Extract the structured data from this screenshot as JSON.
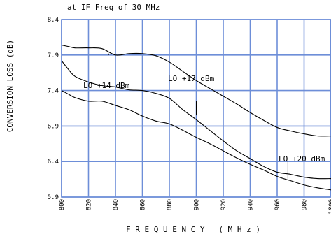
{
  "chart_data": {
    "type": "line",
    "title": "at IF Freq of 30 MHz",
    "xlabel": "F R E Q U E N C Y   ( M H z )",
    "ylabel": "CONVERSION LOSS (dB)",
    "xlim": [
      800,
      1000
    ],
    "ylim": [
      5.9,
      8.4
    ],
    "x_ticks": [
      800,
      820,
      840,
      860,
      880,
      900,
      920,
      940,
      960,
      980,
      1000
    ],
    "y_ticks": [
      5.9,
      6.4,
      6.9,
      7.4,
      7.9,
      8.4
    ],
    "grid": true,
    "series": [
      {
        "name": "LO +14 dBm",
        "x": [
          800,
          805,
          810,
          820,
          830,
          840,
          850,
          860,
          870,
          880,
          890,
          900,
          910,
          920,
          930,
          940,
          950,
          960,
          970,
          980,
          990,
          1000
        ],
        "y": [
          8.04,
          8.02,
          8.0,
          8.0,
          7.99,
          7.9,
          7.92,
          7.92,
          7.89,
          7.8,
          7.67,
          7.54,
          7.43,
          7.32,
          7.21,
          7.09,
          6.98,
          6.88,
          6.83,
          6.79,
          6.76,
          6.76
        ],
        "label_x": 835,
        "label_y": 7.9
      },
      {
        "name": "LO +17 dBm",
        "x": [
          800,
          805,
          810,
          820,
          830,
          840,
          850,
          860,
          870,
          880,
          890,
          900,
          910,
          920,
          930,
          940,
          950,
          960,
          970,
          980,
          990,
          1000
        ],
        "y": [
          7.82,
          7.7,
          7.6,
          7.52,
          7.47,
          7.45,
          7.41,
          7.4,
          7.36,
          7.29,
          7.13,
          6.99,
          6.84,
          6.69,
          6.55,
          6.44,
          6.33,
          6.25,
          6.22,
          6.18,
          6.16,
          6.16
        ],
        "label_x": 900,
        "label_y": 7.05
      },
      {
        "name": "LO +20 dBm",
        "x": [
          800,
          805,
          810,
          820,
          830,
          840,
          850,
          860,
          870,
          880,
          890,
          900,
          910,
          920,
          930,
          940,
          950,
          960,
          970,
          980,
          990,
          1000
        ],
        "y": [
          7.4,
          7.35,
          7.3,
          7.25,
          7.25,
          7.19,
          7.13,
          7.04,
          6.97,
          6.93,
          6.84,
          6.74,
          6.65,
          6.55,
          6.45,
          6.36,
          6.28,
          6.19,
          6.13,
          6.07,
          6.03,
          6.0
        ],
        "label_x": 968,
        "label_y": 6.16
      }
    ]
  }
}
